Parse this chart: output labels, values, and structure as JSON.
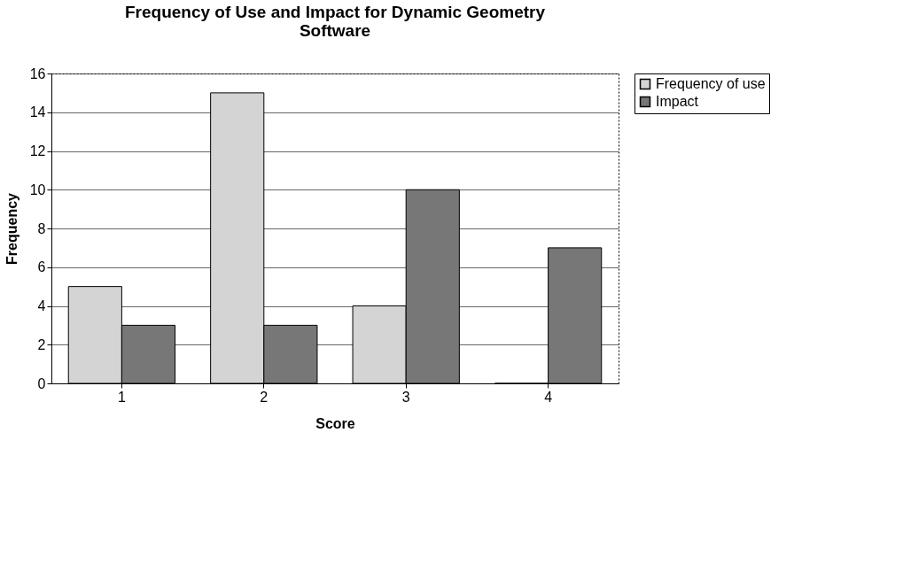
{
  "chart_data": {
    "type": "bar",
    "title": "Frequency of Use and Impact for Dynamic Geometry Software",
    "xlabel": "Score",
    "ylabel": "Frequency",
    "categories": [
      "1",
      "2",
      "3",
      "4"
    ],
    "series": [
      {
        "name": "Frequency of use",
        "color": "#d4d4d4",
        "values": [
          5,
          15,
          4,
          0
        ]
      },
      {
        "name": "Impact",
        "color": "#777777",
        "values": [
          3,
          3,
          10,
          7
        ]
      }
    ],
    "ylim": [
      0,
      16
    ],
    "yticks": [
      0,
      2,
      4,
      6,
      8,
      10,
      12,
      14,
      16
    ],
    "grid": "y",
    "legend": "right"
  }
}
